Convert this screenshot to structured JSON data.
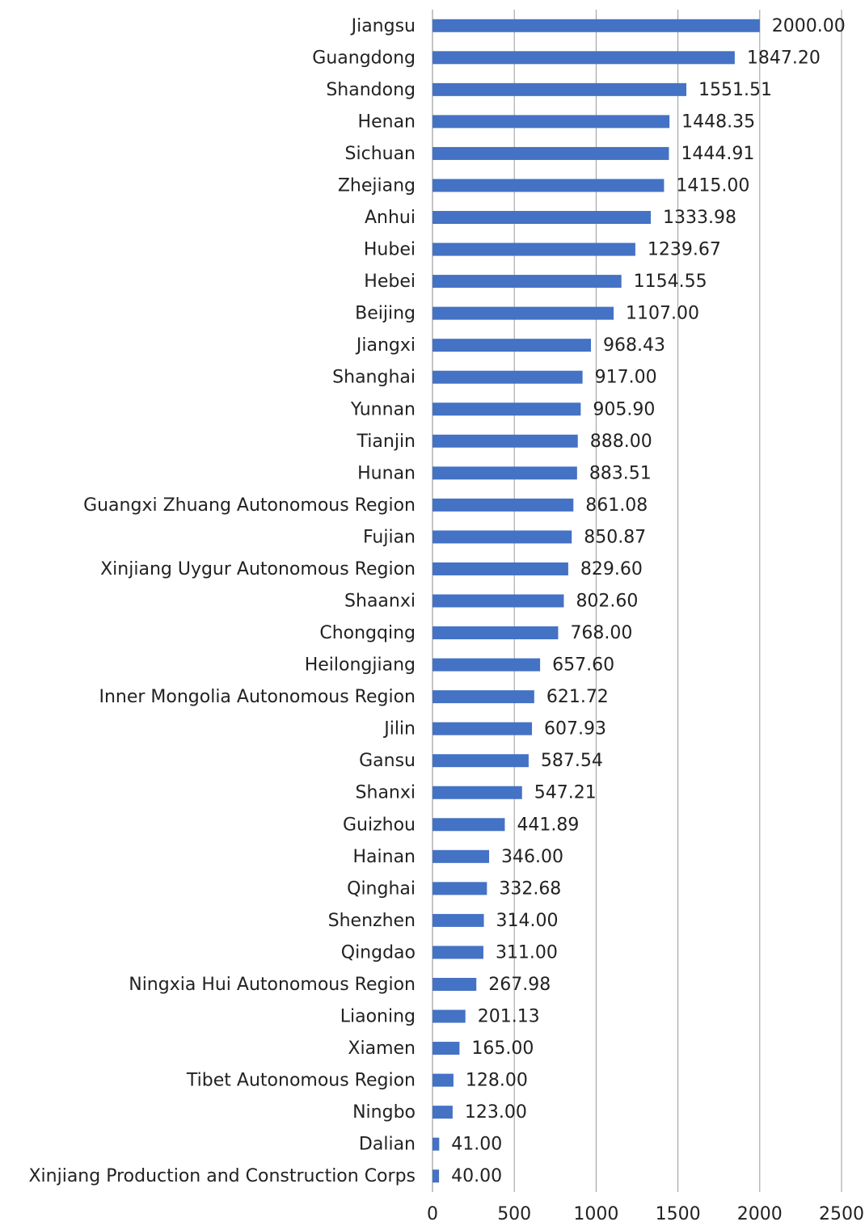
{
  "chart_data": {
    "type": "bar",
    "orientation": "horizontal",
    "categories": [
      "Jiangsu",
      "Guangdong",
      "Shandong",
      "Henan",
      "Sichuan",
      "Zhejiang",
      "Anhui",
      "Hubei",
      "Hebei",
      "Beijing",
      "Jiangxi",
      "Shanghai",
      "Yunnan",
      "Tianjin",
      "Hunan",
      "Guangxi Zhuang Autonomous Region",
      "Fujian",
      "Xinjiang Uygur Autonomous Region",
      "Shaanxi",
      "Chongqing",
      "Heilongjiang",
      "Inner Mongolia Autonomous Region",
      "Jilin",
      "Gansu",
      "Shanxi",
      "Guizhou",
      "Hainan",
      "Qinghai",
      "Shenzhen",
      "Qingdao",
      "Ningxia Hui Autonomous Region",
      "Liaoning",
      "Xiamen",
      "Tibet Autonomous Region",
      "Ningbo",
      "Dalian",
      "Xinjiang Production and Construction Corps"
    ],
    "values": [
      2000,
      1847.2,
      1551.51,
      1448.35,
      1444.91,
      1415,
      1333.98,
      1239.67,
      1154.55,
      1107,
      968.43,
      917,
      905.9,
      888,
      883.51,
      861.08,
      850.87,
      829.6,
      802.6,
      768,
      657.6,
      621.72,
      607.93,
      587.54,
      547.21,
      441.89,
      346,
      332.68,
      314,
      311,
      267.98,
      201.13,
      165,
      128,
      123,
      41,
      40
    ],
    "value_labels": [
      "2000.00",
      "1847.20",
      "1551.51",
      "1448.35",
      "1444.91",
      "1415.00",
      "1333.98",
      "1239.67",
      "1154.55",
      "1107.00",
      "968.43",
      "917.00",
      "905.90",
      "888.00",
      "883.51",
      "861.08",
      "850.87",
      "829.60",
      "802.60",
      "768.00",
      "657.60",
      "621.72",
      "607.93",
      "587.54",
      "547.21",
      "441.89",
      "346.00",
      "332.68",
      "314.00",
      "311.00",
      "267.98",
      "201.13",
      "165.00",
      "128.00",
      "123.00",
      "41.00",
      "40.00"
    ],
    "color": "#4472c4",
    "xlim": [
      0,
      2500
    ],
    "xticks": [
      0,
      500,
      1000,
      1500,
      2000,
      2500
    ],
    "grid": true
  }
}
